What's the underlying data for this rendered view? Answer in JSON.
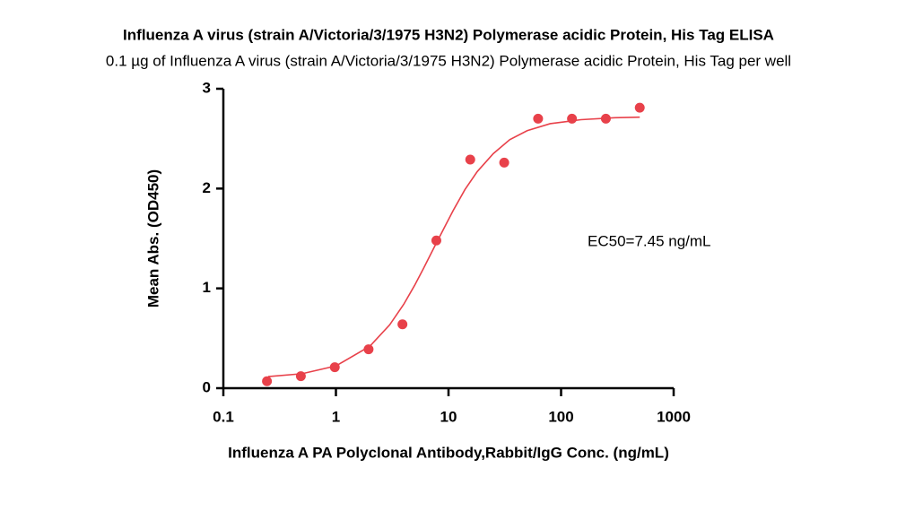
{
  "chart_data": {
    "type": "scatter",
    "title": "Influenza A virus (strain A/Victoria/3/1975 H3N2) Polymerase acidic Protein, His Tag ELISA",
    "subtitle": "0.1 µg of Influenza A virus (strain A/Victoria/3/1975 H3N2) Polymerase acidic Protein, His Tag per well",
    "x_label": "Influenza A PA Polyclonal Antibody,Rabbit/IgG Conc. (ng/mL)",
    "y_label": "Mean Abs. (OD450)",
    "annotation": "EC50=7.45 ng/mL",
    "x": [
      0.244,
      0.488,
      0.977,
      1.95,
      3.9,
      7.8,
      15.6,
      31.25,
      62.5,
      125,
      250,
      500
    ],
    "values": [
      0.07,
      0.12,
      0.21,
      0.39,
      0.64,
      1.48,
      2.29,
      2.26,
      2.7,
      2.7,
      2.7,
      2.81
    ],
    "color": "#e8414a",
    "fit": {
      "x": [
        0.25,
        0.5,
        1,
        2,
        3,
        4,
        5,
        6,
        7.45,
        9,
        11,
        14,
        18,
        25,
        35,
        50,
        80,
        150,
        300,
        500
      ],
      "values": [
        0.116,
        0.145,
        0.223,
        0.42,
        0.634,
        0.84,
        1.03,
        1.2,
        1.41,
        1.59,
        1.78,
        1.99,
        2.17,
        2.35,
        2.49,
        2.58,
        2.65,
        2.69,
        2.71,
        2.715
      ],
      "color": "#e8414a"
    },
    "xscale": "log",
    "xlim": [
      0.1,
      1000
    ],
    "xticks": [
      0.1,
      1,
      10,
      100,
      1000
    ],
    "ylim": [
      0,
      3
    ],
    "yticks": [
      0,
      1,
      2,
      3
    ],
    "grid": false
  }
}
